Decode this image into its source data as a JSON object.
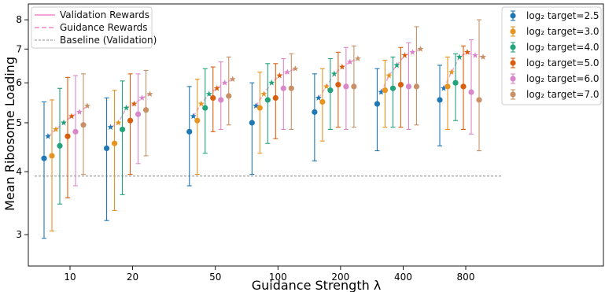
{
  "chart_data": {
    "type": "scatter",
    "xlabel": "Guidance Strength λ",
    "ylabel": "Mean Ribosome Loading",
    "y_scale": "log",
    "ylim": [
      2.6,
      8.6
    ],
    "y_ticks": [
      3,
      4,
      5,
      6,
      7,
      8
    ],
    "categories": [
      "10",
      "20",
      "50",
      "100",
      "200",
      "400",
      "800"
    ],
    "series_colors": [
      "#1f77b4",
      "#e69522",
      "#22a37b",
      "#d95f0e",
      "#d887c8",
      "#c89066"
    ],
    "series": [
      {
        "name": "log₂ target=2.5",
        "validation": [
          4.25,
          4.45,
          4.8,
          5.0,
          5.25,
          5.45,
          5.55
        ],
        "val_err_low": [
          2.95,
          3.2,
          3.75,
          3.95,
          4.2,
          4.4,
          4.5
        ],
        "val_err_high": [
          5.5,
          5.6,
          5.9,
          6.0,
          6.25,
          6.4,
          6.5
        ],
        "guidance": [
          4.7,
          4.9,
          5.15,
          5.4,
          5.6,
          5.75,
          5.85
        ]
      },
      {
        "name": "log₂ target=3.0",
        "validation": [
          4.3,
          4.55,
          5.05,
          5.35,
          5.5,
          5.8,
          5.9
        ],
        "val_err_low": [
          3.05,
          3.35,
          3.95,
          4.35,
          4.6,
          4.9,
          4.85
        ],
        "val_err_high": [
          5.55,
          5.8,
          6.1,
          6.3,
          6.4,
          6.65,
          6.75
        ],
        "guidance": [
          4.85,
          5.0,
          5.45,
          5.7,
          5.9,
          6.2,
          6.3
        ]
      },
      {
        "name": "log₂ target=4.0",
        "validation": [
          4.5,
          4.85,
          5.35,
          5.55,
          5.8,
          5.85,
          6.0
        ],
        "val_err_low": [
          3.45,
          3.6,
          4.35,
          4.55,
          4.85,
          4.9,
          5.05
        ],
        "val_err_high": [
          5.85,
          6.05,
          6.4,
          6.55,
          6.7,
          6.75,
          6.85
        ],
        "guidance": [
          5.0,
          5.35,
          5.7,
          6.0,
          6.25,
          6.5,
          6.75
        ]
      },
      {
        "name": "log₂ target=5.0",
        "validation": [
          4.7,
          5.05,
          5.6,
          5.6,
          5.95,
          5.95,
          5.9
        ],
        "val_err_low": [
          3.55,
          3.95,
          4.8,
          4.65,
          4.9,
          4.9,
          4.85
        ],
        "val_err_high": [
          6.15,
          6.25,
          6.45,
          6.55,
          6.9,
          7.05,
          7.1
        ],
        "guidance": [
          5.15,
          5.45,
          5.85,
          6.2,
          6.45,
          6.8,
          6.9
        ]
      },
      {
        "name": "log₂ target=6.0",
        "validation": [
          4.8,
          5.2,
          5.55,
          5.85,
          5.9,
          5.9,
          5.75
        ],
        "val_err_low": [
          3.75,
          4.15,
          4.85,
          4.85,
          4.85,
          4.85,
          4.75
        ],
        "val_err_high": [
          6.2,
          6.25,
          6.6,
          6.7,
          7.05,
          7.2,
          7.3
        ],
        "guidance": [
          5.25,
          5.6,
          6.0,
          6.3,
          6.6,
          6.9,
          6.8
        ]
      },
      {
        "name": "log₂ target=7.0",
        "validation": [
          4.95,
          5.3,
          5.65,
          5.85,
          5.9,
          5.9,
          5.55
        ],
        "val_err_low": [
          3.95,
          4.3,
          4.95,
          4.85,
          4.9,
          4.95,
          4.4
        ],
        "val_err_high": [
          6.25,
          6.35,
          6.75,
          6.85,
          7.1,
          7.75,
          8.0
        ],
        "guidance": [
          5.4,
          5.7,
          6.1,
          6.4,
          6.7,
          7.0,
          6.75
        ]
      }
    ],
    "baseline_validation": 3.92,
    "legend_left": [
      "Validation Rewards",
      "Guidance Rewards",
      "Baseline (Validation)"
    ],
    "legend_left_placement": "top-left",
    "legend_right_placement": "top-right",
    "grid": false
  }
}
